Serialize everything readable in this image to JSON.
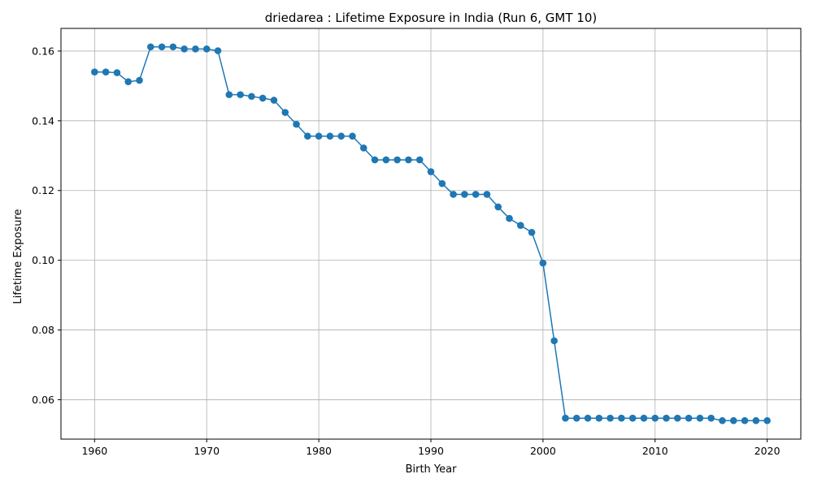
{
  "chart_data": {
    "type": "line",
    "title": "driedarea : Lifetime Exposure in India (Run 6, GMT 10)",
    "xlabel": "Birth Year",
    "ylabel": "Lifetime Exposure",
    "xlim": [
      1957,
      2023
    ],
    "ylim": [
      0.0487,
      0.1665
    ],
    "xticks": [
      1960,
      1970,
      1980,
      1990,
      2000,
      2010,
      2020
    ],
    "yticks": [
      0.06,
      0.08,
      0.1,
      0.12,
      0.14,
      0.16
    ],
    "ytick_labels": [
      "0.06",
      "0.08",
      "0.10",
      "0.12",
      "0.14",
      "0.16"
    ],
    "grid": true,
    "color": "#1f77b4",
    "marker": "circle",
    "x": [
      1960,
      1961,
      1962,
      1963,
      1964,
      1965,
      1966,
      1967,
      1968,
      1969,
      1970,
      1971,
      1972,
      1973,
      1974,
      1975,
      1976,
      1977,
      1978,
      1979,
      1980,
      1981,
      1982,
      1983,
      1984,
      1985,
      1986,
      1987,
      1988,
      1989,
      1990,
      1991,
      1992,
      1993,
      1994,
      1995,
      1996,
      1997,
      1998,
      1999,
      2000,
      2001,
      2002,
      2003,
      2004,
      2005,
      2006,
      2007,
      2008,
      2009,
      2010,
      2011,
      2012,
      2013,
      2014,
      2015,
      2016,
      2017,
      2018,
      2019,
      2020
    ],
    "y": [
      0.154,
      0.154,
      0.1538,
      0.1512,
      0.1516,
      0.1612,
      0.1612,
      0.1612,
      0.1606,
      0.1606,
      0.1606,
      0.1601,
      0.1475,
      0.1475,
      0.147,
      0.1465,
      0.1459,
      0.1424,
      0.139,
      0.1356,
      0.1356,
      0.1356,
      0.1356,
      0.1356,
      0.1322,
      0.1288,
      0.1288,
      0.1288,
      0.1288,
      0.1288,
      0.1254,
      0.122,
      0.1189,
      0.1189,
      0.1189,
      0.1189,
      0.1153,
      0.112,
      0.11,
      0.108,
      0.0992,
      0.0769,
      0.0547,
      0.0547,
      0.0547,
      0.0547,
      0.0547,
      0.0547,
      0.0547,
      0.0547,
      0.0547,
      0.0547,
      0.0547,
      0.0547,
      0.0547,
      0.0547,
      0.054,
      0.054,
      0.054,
      0.054,
      0.054
    ]
  }
}
